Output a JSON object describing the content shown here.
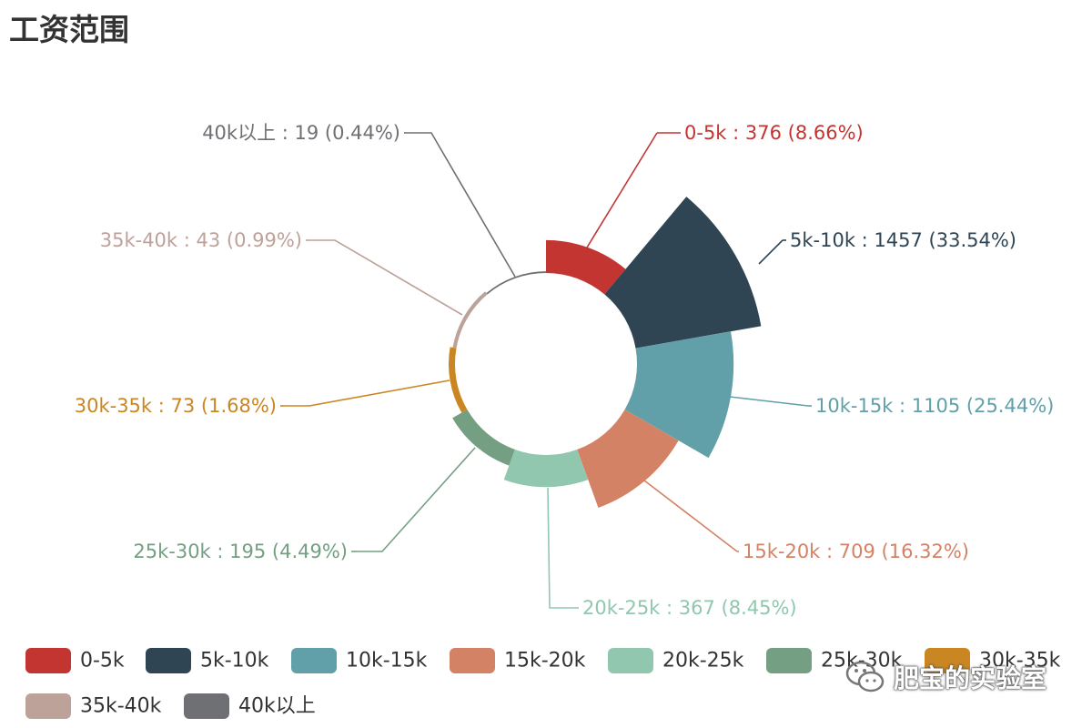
{
  "title": "工资范围",
  "watermark": "肥宝的实验室",
  "chart_data": {
    "type": "pie",
    "subtype": "rose",
    "title": "工资范围",
    "slices": [
      {
        "name": "0-5k",
        "value": 376,
        "percent": "8.66%",
        "color": "#c23531"
      },
      {
        "name": "5k-10k",
        "value": 1457,
        "percent": "33.54%",
        "color": "#2f4554"
      },
      {
        "name": "10k-15k",
        "value": 1105,
        "percent": "25.44%",
        "color": "#61a0a8"
      },
      {
        "name": "15k-20k",
        "value": 709,
        "percent": "16.32%",
        "color": "#d48265"
      },
      {
        "name": "20k-25k",
        "value": 367,
        "percent": "8.45%",
        "color": "#91c7ae"
      },
      {
        "name": "25k-30k",
        "value": 195,
        "percent": "4.49%",
        "color": "#749f83"
      },
      {
        "name": "30k-35k",
        "value": 73,
        "percent": "1.68%",
        "color": "#ca8622"
      },
      {
        "name": "35k-40k",
        "value": 43,
        "percent": "0.99%",
        "color": "#bda29a"
      },
      {
        "name": "40k以上",
        "value": 19,
        "percent": "0.44%",
        "color": "#6e7074"
      }
    ],
    "legend_position": "bottom-left"
  }
}
